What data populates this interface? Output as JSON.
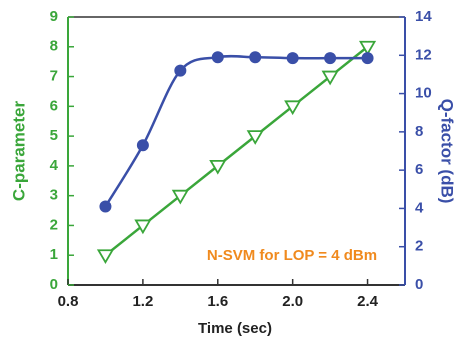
{
  "chart_data": {
    "type": "line",
    "x_label": "Time (sec)",
    "y_label": "C-parameter",
    "y2_label": "Q-factor (dB)",
    "annotation": "N-SVM for LOP = 4 dBm",
    "annotation_color": "#f08a1e",
    "x": [
      1.0,
      1.2,
      1.4,
      1.6,
      1.8,
      2.0,
      2.2,
      2.4
    ],
    "series": [
      {
        "color": "#3aa63a",
        "marker": "triangle-down",
        "smooth": false,
        "values": [
          1,
          2,
          3,
          4,
          5,
          6,
          7,
          8
        ]
      },
      {
        "color": "#3a4fa8",
        "marker": "circle",
        "smooth": true,
        "axis": "y2",
        "values": [
          4.1,
          7.3,
          11.2,
          11.9,
          11.9,
          11.85,
          11.85,
          11.85
        ]
      }
    ],
    "xlim": [
      0.8,
      2.6
    ],
    "xticks": [
      0.8,
      1.2,
      1.6,
      {
        "value": 2,
        "label": "2.0"
      },
      2.4
    ],
    "ylim": [
      0,
      9
    ],
    "yticks": [
      0,
      1,
      2,
      3,
      4,
      5,
      6,
      7,
      8,
      9
    ],
    "y2lim": [
      0,
      14
    ],
    "y2ticks": [
      0,
      2,
      4,
      6,
      8,
      10,
      12,
      14
    ]
  }
}
